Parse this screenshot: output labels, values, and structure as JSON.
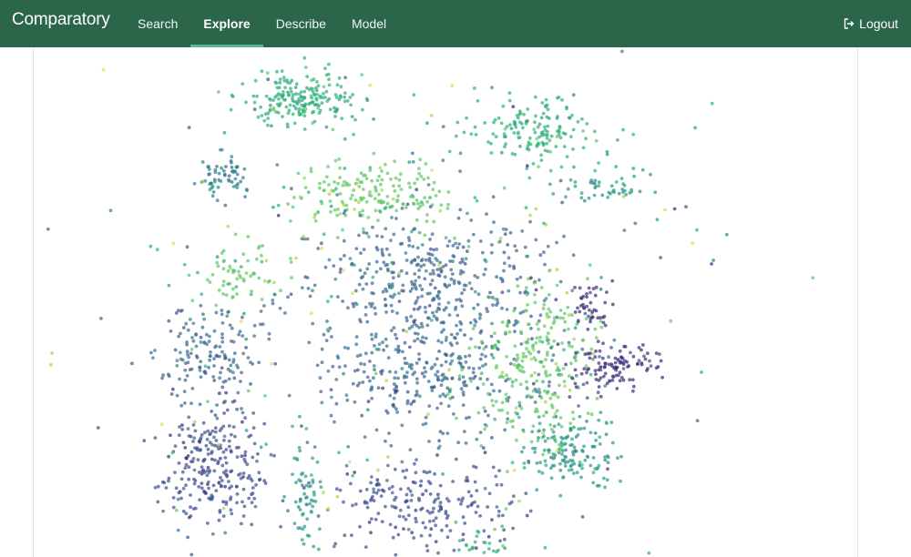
{
  "navbar": {
    "brand": "Comparatory",
    "items": [
      {
        "label": "Search",
        "active": false
      },
      {
        "label": "Explore",
        "active": true
      },
      {
        "label": "Describe",
        "active": false
      },
      {
        "label": "Model",
        "active": false
      }
    ],
    "logout_label": "Logout",
    "logout_icon": "sign-out-icon"
  },
  "colors": {
    "navbar_bg": "#2b654a",
    "active_underline": "#5cb890",
    "palette": [
      "#3d2a7a",
      "#3b4f8c",
      "#3a6790",
      "#2f7f8e",
      "#26998a",
      "#2eb07a",
      "#5ec765",
      "#a3d94b",
      "#cfe24c",
      "#cccccc"
    ]
  },
  "chart_data": {
    "type": "scatter",
    "title": "",
    "xlabel": "",
    "ylabel": "",
    "grid": false,
    "legend": "none",
    "note": "t-SNE style embedding; points colored by cluster (viridis palette)",
    "clusters": [
      {
        "cx": -0.42,
        "cy": 0.93,
        "sx": 0.11,
        "sy": 0.06,
        "n": 200,
        "color_index": 5
      },
      {
        "cx": 0.46,
        "cy": 0.8,
        "sx": 0.12,
        "sy": 0.08,
        "n": 160,
        "color_index": 5
      },
      {
        "cx": -0.72,
        "cy": 0.6,
        "sx": 0.05,
        "sy": 0.05,
        "n": 60,
        "color_index": 3
      },
      {
        "cx": -0.15,
        "cy": 0.52,
        "sx": 0.15,
        "sy": 0.07,
        "n": 180,
        "color_index": 6
      },
      {
        "cx": 0.05,
        "cy": 0.2,
        "sx": 0.22,
        "sy": 0.12,
        "n": 320,
        "color_index": 2
      },
      {
        "cx": -0.65,
        "cy": 0.2,
        "sx": 0.09,
        "sy": 0.07,
        "n": 70,
        "color_index": 6
      },
      {
        "cx": -0.78,
        "cy": -0.15,
        "sx": 0.1,
        "sy": 0.1,
        "n": 140,
        "color_index": 2
      },
      {
        "cx": -0.75,
        "cy": -0.6,
        "sx": 0.1,
        "sy": 0.13,
        "n": 260,
        "color_index": 1
      },
      {
        "cx": 0.08,
        "cy": -0.2,
        "sx": 0.22,
        "sy": 0.15,
        "n": 380,
        "color_index": 2
      },
      {
        "cx": 0.48,
        "cy": -0.2,
        "sx": 0.12,
        "sy": 0.2,
        "n": 260,
        "color_index": 6
      },
      {
        "cx": 0.6,
        "cy": -0.55,
        "sx": 0.08,
        "sy": 0.07,
        "n": 140,
        "color_index": 4
      },
      {
        "cx": 0.75,
        "cy": -0.2,
        "sx": 0.08,
        "sy": 0.05,
        "n": 110,
        "color_index": 0
      },
      {
        "cx": 0.68,
        "cy": 0.05,
        "sx": 0.04,
        "sy": 0.05,
        "n": 45,
        "color_index": 0
      },
      {
        "cx": 0.05,
        "cy": -0.78,
        "sx": 0.18,
        "sy": 0.09,
        "n": 200,
        "color_index": 1
      },
      {
        "cx": -0.4,
        "cy": -0.75,
        "sx": 0.03,
        "sy": 0.12,
        "n": 60,
        "color_index": 4
      },
      {
        "cx": 0.25,
        "cy": -0.98,
        "sx": 0.05,
        "sy": 0.05,
        "n": 40,
        "color_index": 5
      },
      {
        "cx": 0.72,
        "cy": 0.58,
        "sx": 0.08,
        "sy": 0.04,
        "n": 50,
        "color_index": 4
      },
      {
        "cx": 0.0,
        "cy": 0.0,
        "sx": 0.55,
        "sy": 0.55,
        "n": 260,
        "color_index": -1
      }
    ],
    "seed": 7
  }
}
